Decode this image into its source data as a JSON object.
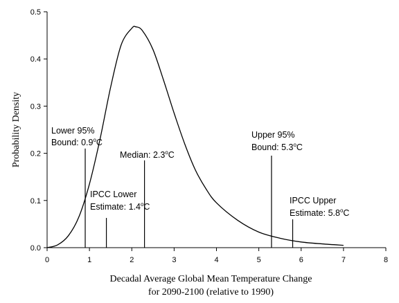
{
  "chart_data": {
    "type": "line",
    "xlabel": [
      "Decadal Average Global Mean Temperature Change",
      "for 2090-2100 (relative to 1990)"
    ],
    "ylabel": "Probability Density",
    "xlim": [
      0,
      8
    ],
    "ylim": [
      0,
      0.5
    ],
    "x_ticks": [
      0,
      1,
      2,
      3,
      4,
      5,
      6,
      7,
      8
    ],
    "x_tick_labels": [
      "0",
      "1",
      "2",
      "3",
      "4",
      "5",
      "6",
      "7",
      "8"
    ],
    "y_ticks": [
      0,
      0.1,
      0.2,
      0.3,
      0.4,
      0.5
    ],
    "y_tick_labels": [
      "0.0",
      "0.1",
      "0.2",
      "0.3",
      "0.4",
      "0.5"
    ],
    "grid": false,
    "series": [
      {
        "x": [
          0,
          0.25,
          0.5,
          0.75,
          1.0,
          1.25,
          1.5,
          1.75,
          2.0,
          2.1,
          2.25,
          2.5,
          2.75,
          3.0,
          3.25,
          3.5,
          3.75,
          4.0,
          4.5,
          5.0,
          5.5,
          6.0,
          6.5,
          7.0
        ],
        "y": [
          0.0,
          0.006,
          0.025,
          0.065,
          0.135,
          0.23,
          0.34,
          0.43,
          0.465,
          0.468,
          0.46,
          0.42,
          0.355,
          0.285,
          0.22,
          0.165,
          0.125,
          0.095,
          0.058,
          0.033,
          0.02,
          0.012,
          0.008,
          0.005
        ]
      }
    ],
    "markers": [
      {
        "x": 0.9,
        "y_top": 0.21,
        "line1": "Lower 95%",
        "line2_prefix": "Bound: 0.9",
        "unit": "C"
      },
      {
        "x": 1.4,
        "y_top": 0.063,
        "line1": "IPCC Lower",
        "line2_prefix": "Estimate: 1.4",
        "unit": "C"
      },
      {
        "x": 2.3,
        "y_top": 0.185,
        "line1": "",
        "line2_prefix": "Median: 2.3",
        "unit": "C"
      },
      {
        "x": 5.3,
        "y_top": 0.195,
        "line1": "Upper 95%",
        "line2_prefix": "Bound: 5.3",
        "unit": "C"
      },
      {
        "x": 5.8,
        "y_top": 0.06,
        "line1": "IPCC Upper",
        "line2_prefix": "Estimate: 5.8",
        "unit": "C"
      }
    ]
  }
}
